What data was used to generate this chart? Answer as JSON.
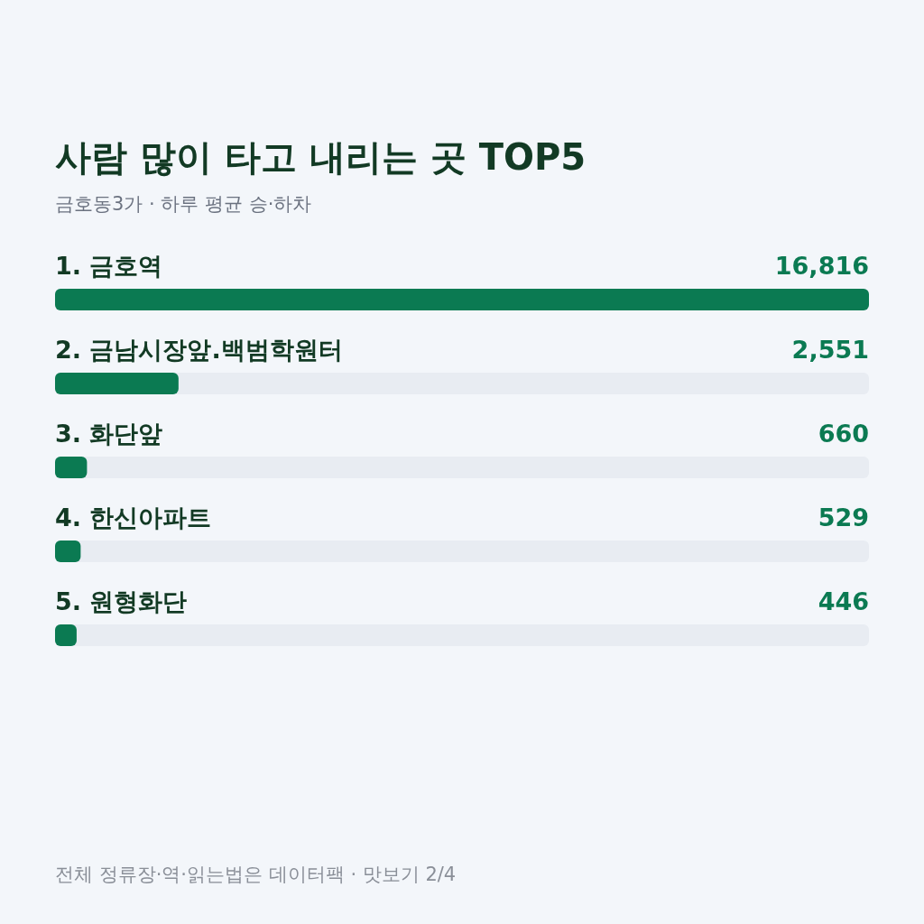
{
  "chart_data": {
    "type": "bar",
    "orientation": "horizontal",
    "title": "사람 많이 타고 내리는 곳 TOP5",
    "subtitle": "금호동3가 · 하루 평균 승·하차",
    "categories": [
      "1. 금호역",
      "2. 금남시장앞.백범학원터",
      "3. 화단앞",
      "4. 한신아파트",
      "5. 원형화단"
    ],
    "values": [
      16816,
      2551,
      660,
      529,
      446
    ],
    "color": "#0b7a52",
    "value_labels": [
      "16,816",
      "2,551",
      "660",
      "529",
      "446"
    ],
    "annotations": [
      "전체 정류장·역·읽는법은 데이터팩 · 맛보기 2/4"
    ]
  }
}
